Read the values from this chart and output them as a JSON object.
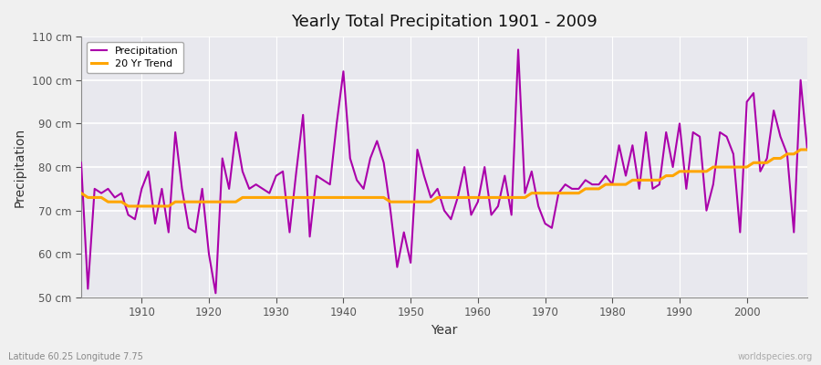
{
  "title": "Yearly Total Precipitation 1901 - 2009",
  "xlabel": "Year",
  "ylabel": "Precipitation",
  "subtitle_left": "Latitude 60.25 Longitude 7.75",
  "subtitle_right": "worldspecies.org",
  "ylim": [
    50,
    110
  ],
  "yticks": [
    50,
    60,
    70,
    80,
    90,
    100,
    110
  ],
  "ytick_labels": [
    "50 cm",
    "60 cm",
    "70 cm",
    "80 cm",
    "90 cm",
    "100 cm",
    "110 cm"
  ],
  "xlim": [
    1901,
    2009
  ],
  "xticks": [
    1910,
    1920,
    1930,
    1940,
    1950,
    1960,
    1970,
    1980,
    1990,
    2000
  ],
  "precip_color": "#aa00aa",
  "trend_color": "#FFA500",
  "fig_bg_color": "#f0f0f0",
  "plot_bg_color": "#e8e8ee",
  "grid_color": "#ffffff",
  "years": [
    1901,
    1902,
    1903,
    1904,
    1905,
    1906,
    1907,
    1908,
    1909,
    1910,
    1911,
    1912,
    1913,
    1914,
    1915,
    1916,
    1917,
    1918,
    1919,
    1920,
    1921,
    1922,
    1923,
    1924,
    1925,
    1926,
    1927,
    1928,
    1929,
    1930,
    1931,
    1932,
    1933,
    1934,
    1935,
    1936,
    1937,
    1938,
    1939,
    1940,
    1941,
    1942,
    1943,
    1944,
    1945,
    1946,
    1947,
    1948,
    1949,
    1950,
    1951,
    1952,
    1953,
    1954,
    1955,
    1956,
    1957,
    1958,
    1959,
    1960,
    1961,
    1962,
    1963,
    1964,
    1965,
    1966,
    1967,
    1968,
    1969,
    1970,
    1971,
    1972,
    1973,
    1974,
    1975,
    1976,
    1977,
    1978,
    1979,
    1980,
    1981,
    1982,
    1983,
    1984,
    1985,
    1986,
    1987,
    1988,
    1989,
    1990,
    1991,
    1992,
    1993,
    1994,
    1995,
    1996,
    1997,
    1998,
    1999,
    2000,
    2001,
    2002,
    2003,
    2004,
    2005,
    2006,
    2007,
    2008,
    2009
  ],
  "precipitation": [
    81,
    52,
    75,
    74,
    75,
    73,
    74,
    69,
    68,
    75,
    79,
    67,
    75,
    65,
    88,
    75,
    66,
    65,
    75,
    60,
    51,
    82,
    75,
    88,
    79,
    75,
    76,
    75,
    74,
    78,
    79,
    65,
    79,
    92,
    64,
    78,
    77,
    76,
    90,
    102,
    82,
    77,
    75,
    82,
    86,
    81,
    70,
    57,
    65,
    58,
    84,
    78,
    73,
    75,
    70,
    68,
    73,
    80,
    69,
    72,
    80,
    69,
    71,
    78,
    69,
    107,
    74,
    79,
    71,
    67,
    66,
    74,
    76,
    75,
    75,
    77,
    76,
    76,
    78,
    76,
    85,
    78,
    85,
    75,
    88,
    75,
    76,
    88,
    80,
    90,
    75,
    88,
    87,
    70,
    76,
    88,
    87,
    83,
    65,
    95,
    97,
    79,
    82,
    93,
    87,
    83,
    65,
    100,
    84
  ],
  "trend": [
    74,
    73,
    73,
    73,
    72,
    72,
    72,
    71,
    71,
    71,
    71,
    71,
    71,
    71,
    72,
    72,
    72,
    72,
    72,
    72,
    72,
    72,
    72,
    72,
    73,
    73,
    73,
    73,
    73,
    73,
    73,
    73,
    73,
    73,
    73,
    73,
    73,
    73,
    73,
    73,
    73,
    73,
    73,
    73,
    73,
    73,
    72,
    72,
    72,
    72,
    72,
    72,
    72,
    73,
    73,
    73,
    73,
    73,
    73,
    73,
    73,
    73,
    73,
    73,
    73,
    73,
    73,
    74,
    74,
    74,
    74,
    74,
    74,
    74,
    74,
    75,
    75,
    75,
    76,
    76,
    76,
    76,
    77,
    77,
    77,
    77,
    77,
    78,
    78,
    79,
    79,
    79,
    79,
    79,
    80,
    80,
    80,
    80,
    80,
    80,
    81,
    81,
    81,
    82,
    82,
    83,
    83,
    84,
    84
  ]
}
